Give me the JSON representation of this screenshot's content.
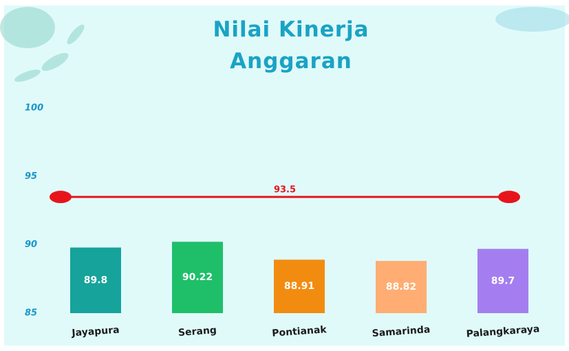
{
  "chart_data": {
    "type": "bar",
    "title": "Nilai Kinerja Anggaran",
    "categories": [
      "Jayapura",
      "Serang",
      "Pontianak",
      "Samarinda",
      "Palangkaraya"
    ],
    "values": [
      89.8,
      90.22,
      88.91,
      88.82,
      89.7
    ],
    "colors": [
      "#16a39b",
      "#1fbf6a",
      "#f28c10",
      "#ffad72",
      "#a47ef0"
    ],
    "ylim": [
      85,
      100
    ],
    "yticks": [
      85,
      90,
      95,
      100
    ],
    "reference_line": {
      "value": 93.5,
      "color": "#e8141c"
    }
  }
}
